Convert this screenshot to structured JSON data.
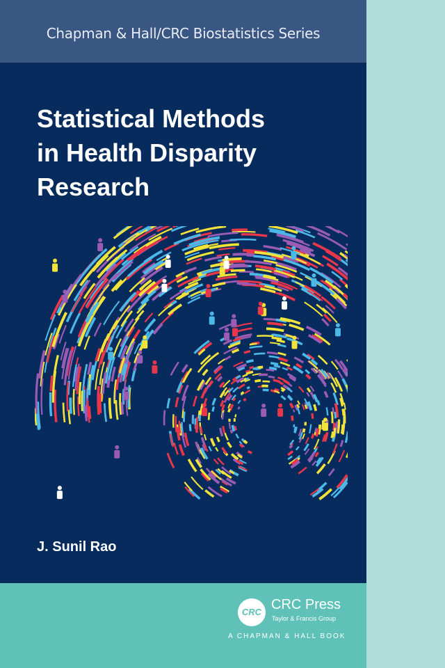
{
  "series": "Chapman & Hall/CRC Biostatistics Series",
  "title": [
    "Statistical Methods",
    "in Health Disparity",
    "Research"
  ],
  "author": "J. Sunil Rao",
  "publisher": {
    "logo_text": "CRC",
    "name": "CRC Press",
    "group": "Taylor & Francis Group",
    "imprint": "A CHAPMAN & HALL BOOK"
  },
  "colors": {
    "navy": "#062b5c",
    "series_band": "#3a5683",
    "teal": "#5fc1b8",
    "spine": "#b0ddd8",
    "art": [
      "#f2e33a",
      "#e8364a",
      "#4cb8e8",
      "#9a5bb5",
      "#ffffff"
    ]
  }
}
